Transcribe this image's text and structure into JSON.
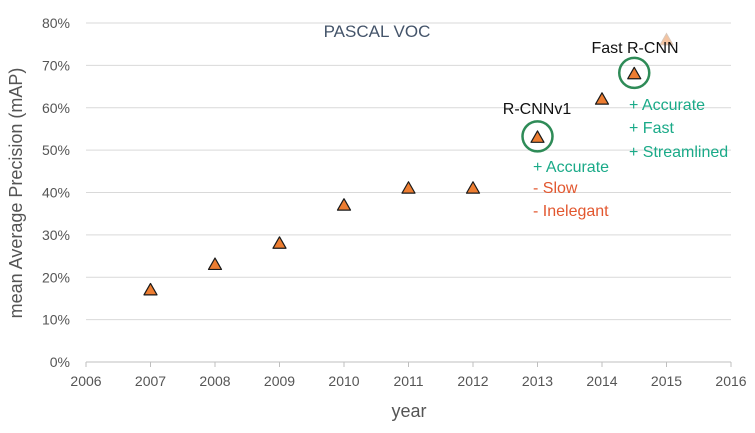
{
  "chart_data": {
    "type": "scatter",
    "title": "PASCAL VOC",
    "xlabel": "year",
    "ylabel": "mean Average Precision (mAP)",
    "xlim": [
      2006,
      2016
    ],
    "ylim": [
      0,
      80
    ],
    "x_ticks": [
      "2006",
      "2007",
      "2008",
      "2009",
      "2010",
      "2011",
      "2012",
      "2013",
      "2014",
      "2015",
      "2016"
    ],
    "y_ticks": [
      "0%",
      "10%",
      "20%",
      "30%",
      "40%",
      "50%",
      "60%",
      "70%",
      "80%"
    ],
    "grid": "horizontal",
    "marker": "triangle",
    "marker_color": "#ed7d31",
    "faded_marker_color": "#f4c3a0",
    "highlight_color": "#2e8b57",
    "points": [
      {
        "x": 2007,
        "y": 17
      },
      {
        "x": 2008,
        "y": 23
      },
      {
        "x": 2009,
        "y": 28
      },
      {
        "x": 2010,
        "y": 37
      },
      {
        "x": 2011,
        "y": 41
      },
      {
        "x": 2012,
        "y": 41
      },
      {
        "x": 2013,
        "y": 53,
        "highlighted": true
      },
      {
        "x": 2014,
        "y": 62
      },
      {
        "x": 2014.5,
        "y": 68,
        "highlighted": true
      },
      {
        "x": 2015,
        "y": 76,
        "faded": true
      }
    ],
    "annotations": [
      {
        "label": "R-CNNv1",
        "notes": [
          {
            "text": "+ Accurate",
            "color": "#1aaa88"
          },
          {
            "text": "- Slow",
            "color": "#e2572f"
          },
          {
            "text": "- Inelegant",
            "color": "#e2572f"
          }
        ]
      },
      {
        "label": "Fast R-CNN",
        "notes": [
          {
            "text": "+ Accurate",
            "color": "#1aaa88"
          },
          {
            "text": "+ Fast",
            "color": "#1aaa88"
          },
          {
            "text": "+ Streamlined",
            "color": "#1aaa88"
          }
        ]
      }
    ]
  }
}
